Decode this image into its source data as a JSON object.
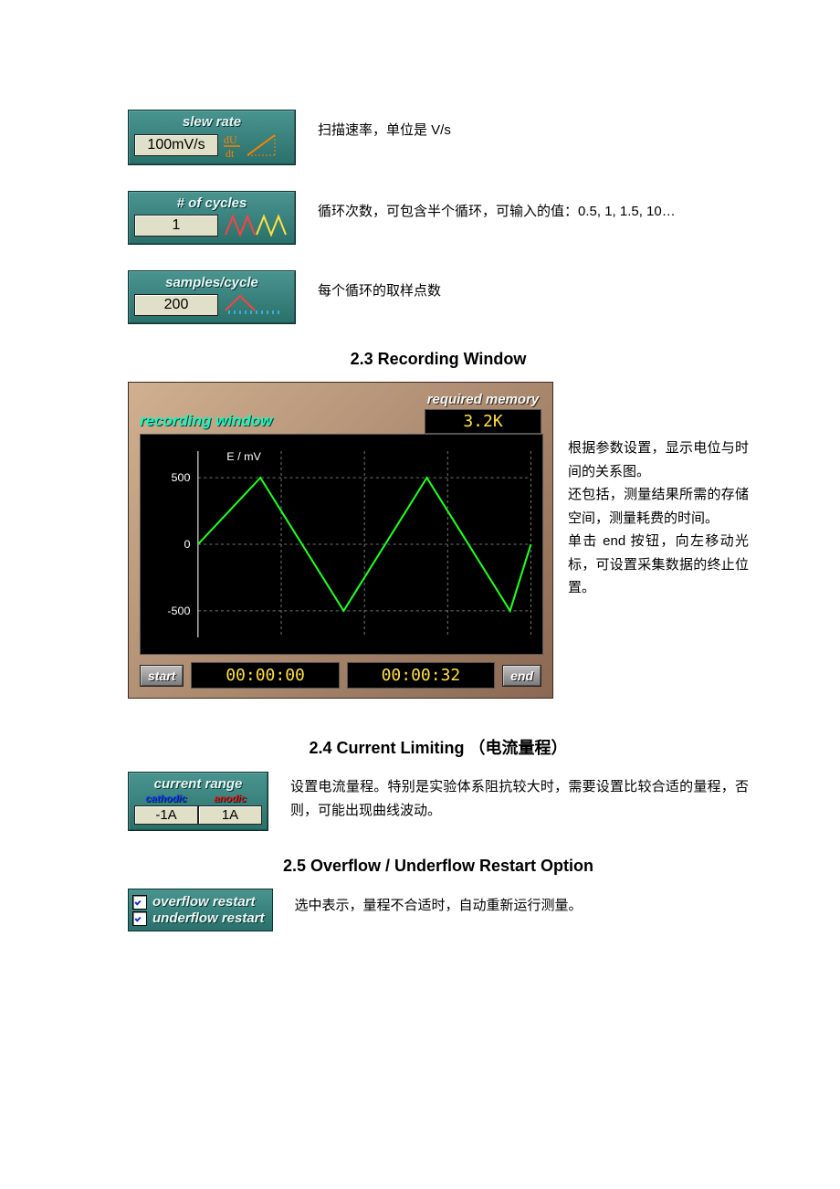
{
  "widgets": {
    "slew_rate": {
      "title": "slew rate",
      "value": "100mV/s",
      "desc": "扫描速率，单位是 V/s",
      "accent": "#ff8000"
    },
    "cycles": {
      "title": "# of cycles",
      "value": "1",
      "desc": "循环次数，可包含半个循环，可输入的值：0.5, 1, 1.5, 10…"
    },
    "samples": {
      "title": "samples/cycle",
      "value": "200",
      "desc": "每个循环的取样点数"
    }
  },
  "sections": {
    "recording": "2.3 Recording Window",
    "current_lim": "2.4 Current Limiting  （电流量程）",
    "overflow": "2.5 Overflow / Underflow Restart Option"
  },
  "recording": {
    "title": "recording window",
    "mem_label": "required memory",
    "mem_value": "3.2K",
    "start_btn": "start",
    "end_btn": "end",
    "time_start": "00:00:00",
    "time_end": "00:00:32",
    "side_text": "根据参数设置，显示电位与时间的关系图。\n还包括，测量结果所需的存储空间，测量耗费的时间。\n单击 end 按钮，向左移动光标，可设置采集数据的终止位置。",
    "chart": {
      "type": "line",
      "y_label": "E / mV",
      "y_ticks": [
        500,
        0,
        -500
      ],
      "ylim": [
        -700,
        700
      ],
      "xlim": [
        0,
        32
      ],
      "line_color": "#20ff20",
      "grid_color": "#707070",
      "tick_color": "#ffffff",
      "bg": "#000000",
      "dash": "3,3",
      "points": [
        [
          0,
          0
        ],
        [
          6,
          500
        ],
        [
          14,
          -500
        ],
        [
          22,
          500
        ],
        [
          30,
          -500
        ],
        [
          32,
          0
        ]
      ],
      "label_fontsize": 12
    }
  },
  "current_range": {
    "title": "current range",
    "cathodic_label": "cathodic",
    "anodic_label": "anodic",
    "cathodic_value": "-1A",
    "anodic_value": "1A",
    "desc": "设置电流量程。特别是实验体系阻抗较大时，需要设置比较合适的量程，否则，可能出现曲线波动。"
  },
  "restart": {
    "overflow_label": "overflow restart",
    "underflow_label": "underflow restart",
    "overflow_checked": true,
    "underflow_checked": true,
    "desc": "选中表示，量程不合适时，自动重新运行测量。"
  },
  "colors": {
    "widget_bg_top": "#4a9490",
    "widget_bg_bot": "#2a706a",
    "value_bg": "#e0e0c8",
    "panel_bg": "#b38b6c",
    "lcd_text": "#ffe040"
  }
}
